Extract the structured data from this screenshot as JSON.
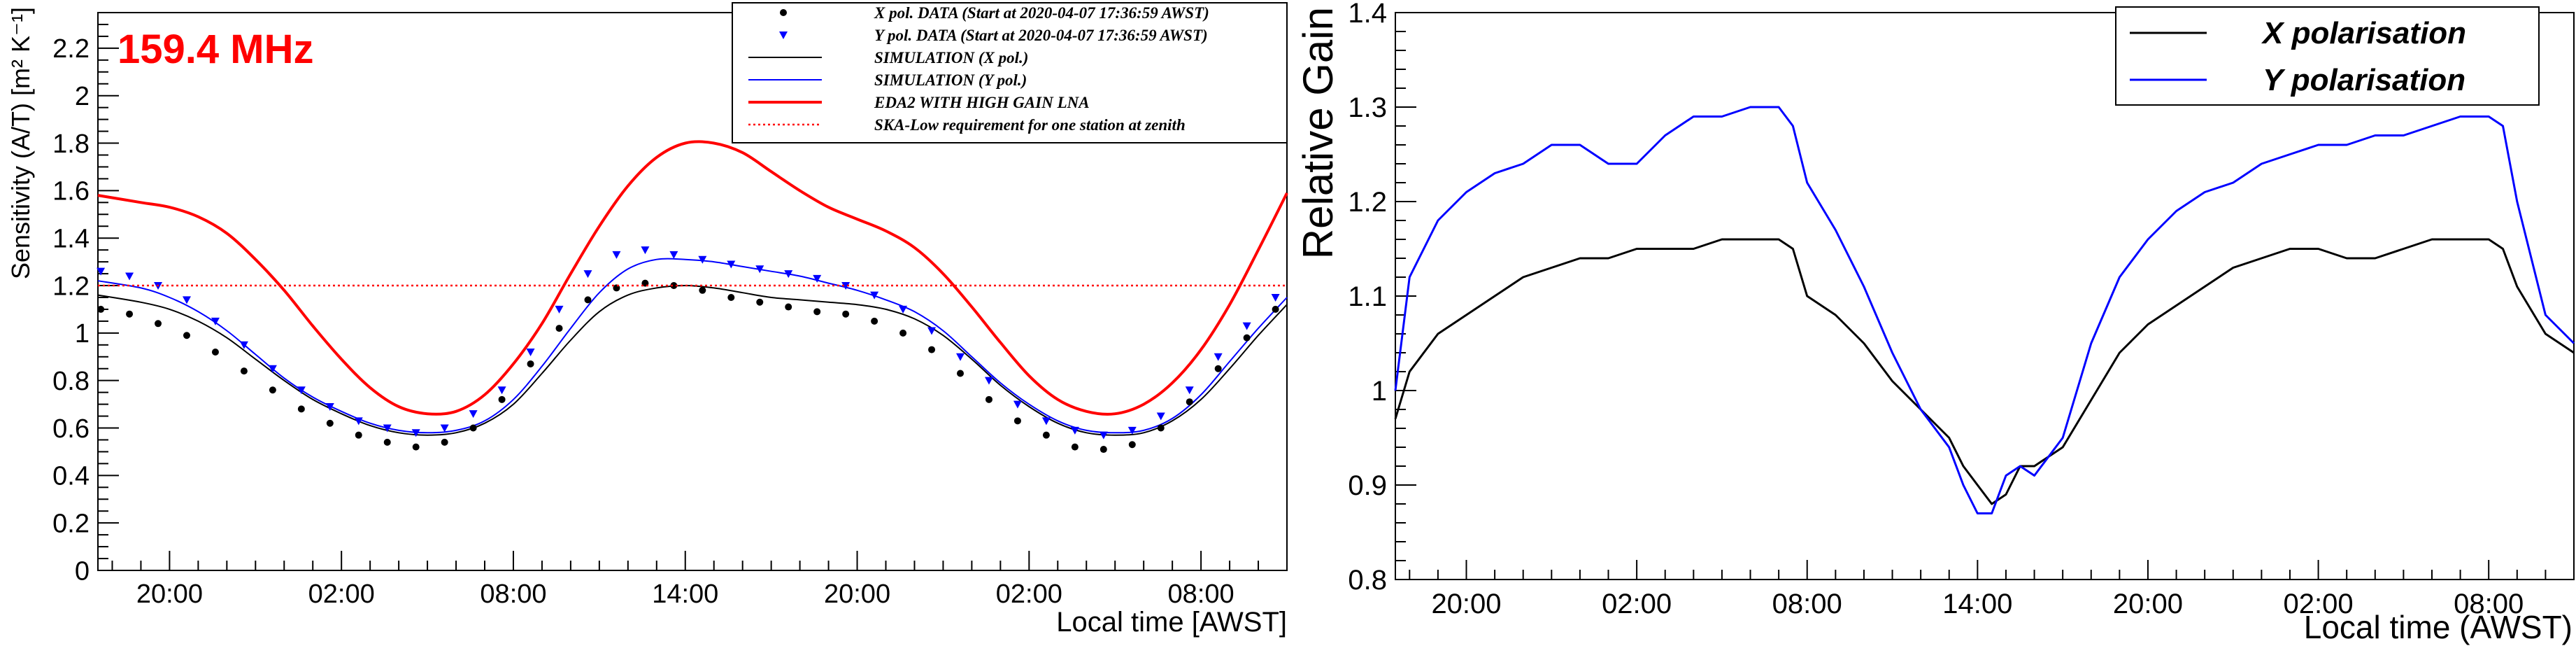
{
  "chart_data": [
    {
      "type": "scatter",
      "annotation": "159.4  MHz",
      "ylabel": "Sensitivity (A/T) [m² K⁻¹]",
      "xlabel": "Local time [AWST]",
      "x_range_hours": [
        17.5,
        59.0
      ],
      "ylim": [
        0,
        2.35
      ],
      "xticks": [
        {
          "label": "20:00",
          "x": 20
        },
        {
          "label": "02:00",
          "x": 26
        },
        {
          "label": "08:00",
          "x": 32
        },
        {
          "label": "14:00",
          "x": 38
        },
        {
          "label": "20:00",
          "x": 44
        },
        {
          "label": "02:00",
          "x": 50
        },
        {
          "label": "08:00",
          "x": 56
        }
      ],
      "yticks": [
        0,
        0.2,
        0.4,
        0.6,
        0.8,
        1,
        1.2,
        1.4,
        1.6,
        1.8,
        2,
        2.2
      ],
      "ytick_labels": [
        "0",
        "0.2",
        "0.4",
        "0.6",
        "0.8",
        "1",
        "1.2",
        "1.4",
        "1.6",
        "1.8",
        "2",
        "2.2"
      ],
      "legend_position": "top-right",
      "legend": [
        {
          "label": "X pol. DATA (Start at 2020-04-07 17:36:59 AWST)",
          "color": "#000000",
          "style": "dot"
        },
        {
          "label": "Y pol. DATA (Start at 2020-04-07 17:36:59 AWST)",
          "color": "#0000ff",
          "style": "triangle"
        },
        {
          "label": "SIMULATION (X pol.)",
          "color": "#000000",
          "style": "line"
        },
        {
          "label": "SIMULATION (Y pol.)",
          "color": "#0000ff",
          "style": "line"
        },
        {
          "label": "EDA2 WITH HIGH GAIN LNA",
          "color": "#ff0000",
          "style": "thick-line"
        },
        {
          "label": "SKA-Low requirement for one station at zenith",
          "color": "#ff0000",
          "style": "dotted"
        }
      ],
      "series": [
        {
          "name": "EDA2 WITH HIGH GAIN LNA",
          "color": "#ff0000",
          "x": [
            17.5,
            19,
            20,
            21,
            22,
            23,
            24,
            25,
            26,
            27,
            28,
            29,
            30,
            31,
            32,
            33,
            34,
            35,
            36,
            37,
            38,
            39,
            40,
            41,
            42,
            43,
            44,
            45,
            46,
            47,
            48,
            49,
            50,
            51,
            52,
            53,
            54,
            55,
            56,
            57,
            58,
            59
          ],
          "values": [
            1.58,
            1.55,
            1.53,
            1.49,
            1.42,
            1.31,
            1.18,
            1.03,
            0.89,
            0.77,
            0.69,
            0.66,
            0.67,
            0.74,
            0.87,
            1.04,
            1.25,
            1.45,
            1.62,
            1.74,
            1.8,
            1.8,
            1.76,
            1.68,
            1.6,
            1.53,
            1.48,
            1.43,
            1.36,
            1.25,
            1.11,
            0.96,
            0.82,
            0.72,
            0.67,
            0.66,
            0.7,
            0.79,
            0.93,
            1.12,
            1.35,
            1.59
          ]
        },
        {
          "name": "SIMULATION (X pol.)",
          "color": "#000000",
          "x": [
            17.5,
            19,
            20,
            21,
            22,
            23,
            24,
            25,
            26,
            27,
            28,
            29,
            30,
            31,
            32,
            33,
            34,
            35,
            36,
            37,
            38,
            39,
            40,
            41,
            42,
            43,
            44,
            45,
            46,
            47,
            48,
            49,
            50,
            51,
            52,
            53,
            54,
            55,
            56,
            57,
            58,
            59
          ],
          "values": [
            1.16,
            1.13,
            1.1,
            1.05,
            0.98,
            0.89,
            0.8,
            0.72,
            0.66,
            0.61,
            0.58,
            0.57,
            0.58,
            0.62,
            0.7,
            0.83,
            0.97,
            1.09,
            1.16,
            1.19,
            1.2,
            1.19,
            1.17,
            1.15,
            1.14,
            1.13,
            1.12,
            1.1,
            1.06,
            0.99,
            0.89,
            0.78,
            0.69,
            0.62,
            0.58,
            0.57,
            0.58,
            0.63,
            0.72,
            0.85,
            0.99,
            1.12
          ]
        },
        {
          "name": "SIMULATION (Y pol.)",
          "color": "#0000ff",
          "x": [
            17.5,
            19,
            20,
            21,
            22,
            23,
            24,
            25,
            26,
            27,
            28,
            29,
            30,
            31,
            32,
            33,
            34,
            35,
            36,
            37,
            38,
            39,
            40,
            41,
            42,
            43,
            44,
            45,
            46,
            47,
            48,
            49,
            50,
            51,
            52,
            53,
            54,
            55,
            56,
            57,
            58,
            59
          ],
          "values": [
            1.22,
            1.19,
            1.15,
            1.09,
            1.01,
            0.91,
            0.81,
            0.73,
            0.67,
            0.62,
            0.59,
            0.58,
            0.59,
            0.63,
            0.72,
            0.86,
            1.02,
            1.17,
            1.27,
            1.31,
            1.31,
            1.3,
            1.28,
            1.26,
            1.24,
            1.21,
            1.18,
            1.14,
            1.09,
            1.01,
            0.9,
            0.79,
            0.7,
            0.63,
            0.59,
            0.58,
            0.59,
            0.64,
            0.74,
            0.88,
            1.02,
            1.15
          ]
        },
        {
          "name": "X pol. DATA",
          "color": "#000000",
          "marker": "dot",
          "x": [
            17.6,
            18.6,
            19.6,
            20.6,
            21.6,
            22.6,
            23.6,
            24.6,
            25.6,
            26.6,
            27.6,
            28.6,
            29.6,
            30.6,
            31.6,
            32.6,
            33.6,
            34.6,
            35.6,
            36.6,
            37.6,
            38.6,
            39.6,
            40.6,
            41.6,
            42.6,
            43.6,
            44.6,
            45.6,
            46.6,
            47.6,
            48.6,
            49.6,
            50.6,
            51.6,
            52.6,
            53.6,
            54.6,
            55.6,
            56.6,
            57.6,
            58.6
          ],
          "values": [
            1.1,
            1.08,
            1.04,
            0.99,
            0.92,
            0.84,
            0.76,
            0.68,
            0.62,
            0.57,
            0.54,
            0.52,
            0.54,
            0.6,
            0.72,
            0.87,
            1.02,
            1.14,
            1.19,
            1.21,
            1.2,
            1.18,
            1.15,
            1.13,
            1.11,
            1.09,
            1.08,
            1.05,
            1.0,
            0.93,
            0.83,
            0.72,
            0.63,
            0.57,
            0.52,
            0.51,
            0.53,
            0.6,
            0.71,
            0.85,
            0.98,
            1.1
          ]
        },
        {
          "name": "Y pol. DATA",
          "color": "#0000ff",
          "marker": "triangle",
          "x": [
            17.6,
            18.6,
            19.6,
            20.6,
            21.6,
            22.6,
            23.6,
            24.6,
            25.6,
            26.6,
            27.6,
            28.6,
            29.6,
            30.6,
            31.6,
            32.6,
            33.6,
            34.6,
            35.6,
            36.6,
            37.6,
            38.6,
            39.6,
            40.6,
            41.6,
            42.6,
            43.6,
            44.6,
            45.6,
            46.6,
            47.6,
            48.6,
            49.6,
            50.6,
            51.6,
            52.6,
            53.6,
            54.6,
            55.6,
            56.6,
            57.6,
            58.6
          ],
          "values": [
            1.26,
            1.24,
            1.2,
            1.14,
            1.05,
            0.95,
            0.85,
            0.76,
            0.69,
            0.63,
            0.6,
            0.58,
            0.6,
            0.66,
            0.76,
            0.92,
            1.1,
            1.25,
            1.33,
            1.35,
            1.33,
            1.31,
            1.29,
            1.27,
            1.25,
            1.23,
            1.2,
            1.16,
            1.1,
            1.01,
            0.9,
            0.8,
            0.7,
            0.63,
            0.59,
            0.57,
            0.59,
            0.65,
            0.76,
            0.9,
            1.03,
            1.15
          ]
        },
        {
          "name": "SKA-Low requirement for one station at zenith",
          "color": "#ff0000",
          "style": "dotted",
          "x": [
            17.5,
            59.0
          ],
          "values": [
            1.2,
            1.2
          ]
        }
      ]
    },
    {
      "type": "line",
      "ylabel": "Relative Gain",
      "xlabel": "Local time (AWST)",
      "x_range_hours": [
        17.5,
        59.0
      ],
      "ylim": [
        0.8,
        1.4
      ],
      "xticks": [
        {
          "label": "20:00",
          "x": 20
        },
        {
          "label": "02:00",
          "x": 26
        },
        {
          "label": "08:00",
          "x": 32
        },
        {
          "label": "14:00",
          "x": 38
        },
        {
          "label": "20:00",
          "x": 44
        },
        {
          "label": "02:00",
          "x": 50
        },
        {
          "label": "08:00",
          "x": 56
        }
      ],
      "yticks": [
        0.8,
        0.9,
        1,
        1.1,
        1.2,
        1.3,
        1.4
      ],
      "ytick_labels": [
        "0.8",
        "0.9",
        "1",
        "1.1",
        "1.2",
        "1.3",
        "1.4"
      ],
      "legend_position": "top-right",
      "legend": [
        {
          "label": "X polarisation",
          "color": "#000000"
        },
        {
          "label": "Y polarisation",
          "color": "#0000ff"
        }
      ],
      "series": [
        {
          "name": "X polarisation",
          "color": "#000000",
          "x": [
            17.5,
            18,
            19,
            20,
            21,
            22,
            23,
            24,
            25,
            26,
            27,
            28,
            29,
            30,
            31,
            31.5,
            32,
            33,
            34,
            35,
            36,
            37,
            37.5,
            38,
            38.5,
            39,
            39.5,
            40,
            41,
            42,
            43,
            44,
            45,
            46,
            47,
            48,
            49,
            50,
            51,
            52,
            53,
            54,
            55,
            56,
            56.5,
            57,
            58,
            59
          ],
          "values": [
            0.97,
            1.02,
            1.06,
            1.08,
            1.1,
            1.12,
            1.13,
            1.14,
            1.14,
            1.15,
            1.15,
            1.15,
            1.16,
            1.16,
            1.16,
            1.15,
            1.1,
            1.08,
            1.05,
            1.01,
            0.98,
            0.95,
            0.92,
            0.9,
            0.88,
            0.89,
            0.92,
            0.92,
            0.94,
            0.99,
            1.04,
            1.07,
            1.09,
            1.11,
            1.13,
            1.14,
            1.15,
            1.15,
            1.14,
            1.14,
            1.15,
            1.16,
            1.16,
            1.16,
            1.15,
            1.11,
            1.06,
            1.04
          ]
        },
        {
          "name": "Y polarisation",
          "color": "#0000ff",
          "x": [
            17.5,
            18,
            19,
            20,
            21,
            22,
            23,
            24,
            25,
            26,
            27,
            28,
            29,
            30,
            31,
            31.5,
            32,
            33,
            34,
            35,
            36,
            37,
            37.5,
            38,
            38.5,
            39,
            39.5,
            40,
            41,
            42,
            43,
            44,
            45,
            46,
            47,
            48,
            49,
            50,
            51,
            52,
            53,
            54,
            55,
            56,
            56.5,
            57,
            58,
            59
          ],
          "values": [
            1.0,
            1.12,
            1.18,
            1.21,
            1.23,
            1.24,
            1.26,
            1.26,
            1.24,
            1.24,
            1.27,
            1.29,
            1.29,
            1.3,
            1.3,
            1.28,
            1.22,
            1.17,
            1.11,
            1.04,
            0.98,
            0.94,
            0.9,
            0.87,
            0.87,
            0.91,
            0.92,
            0.91,
            0.95,
            1.05,
            1.12,
            1.16,
            1.19,
            1.21,
            1.22,
            1.24,
            1.25,
            1.26,
            1.26,
            1.27,
            1.27,
            1.28,
            1.29,
            1.29,
            1.28,
            1.2,
            1.08,
            1.05
          ]
        }
      ]
    }
  ]
}
